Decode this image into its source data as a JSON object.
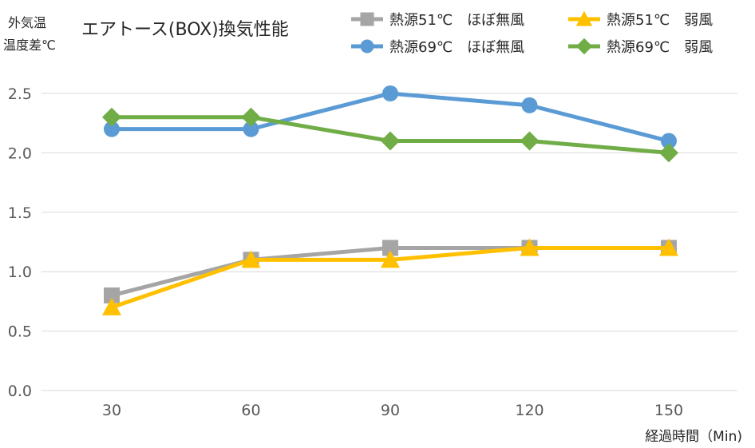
{
  "chart_data": {
    "type": "line",
    "title": "エアトース(BOX)換気性能",
    "ylabel_line1": "外気温",
    "ylabel_line2": "温度差℃",
    "xlabel": "経過時間（Min)",
    "categories": [
      "30",
      "60",
      "90",
      "120",
      "150"
    ],
    "y_ticks": [
      "0.0",
      "0.5",
      "1.0",
      "1.5",
      "2.0",
      "2.5"
    ],
    "ylim": [
      0,
      2.5
    ],
    "grid": "horizontal",
    "legend_position": "top-right",
    "series": [
      {
        "name": "熱源51℃　ほぼ無風",
        "values": [
          0.8,
          1.1,
          1.2,
          1.2,
          1.2
        ],
        "color": "#a5a5a5",
        "marker": "square"
      },
      {
        "name": "熱源51℃　弱風",
        "values": [
          0.7,
          1.1,
          1.1,
          1.2,
          1.2
        ],
        "color": "#ffc000",
        "marker": "triangle"
      },
      {
        "name": "熱源69℃　ほぼ無風",
        "values": [
          2.2,
          2.2,
          2.5,
          2.4,
          2.1
        ],
        "color": "#5b9bd5",
        "marker": "circle"
      },
      {
        "name": "熱源69℃　弱風",
        "values": [
          2.3,
          2.3,
          2.1,
          2.1,
          2.0
        ],
        "color": "#70ad47",
        "marker": "diamond"
      }
    ]
  }
}
